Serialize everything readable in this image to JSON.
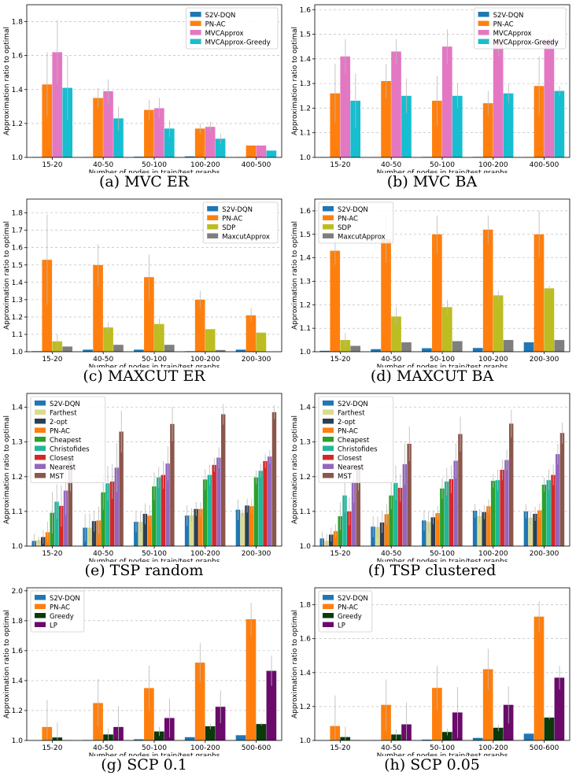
{
  "colors": {
    "S2V-DQN": "#1f77b4",
    "PN-AC": "#ff7f0e",
    "MVCApprox": "#e377c2",
    "MVCApprox-Greedy": "#17becf",
    "SDP": "#bcbd22",
    "MaxcutApprox": "#7f7f7f",
    "Farthest": "#dbdb8d",
    "2-opt": "#2f3f52",
    "Cheapest": "#2ca02c",
    "Christofides": "#1fb89a",
    "Closest": "#d62728",
    "Nearest": "#9467bd",
    "MST": "#8c564b",
    "Greedy": "#0a3a0a",
    "LP": "#6a0a6a"
  },
  "chart_data": [
    {
      "id": "a",
      "type": "bar",
      "caption": "(a) MVC ER",
      "xlabel": "Number of nodes in train/test graphs",
      "ylabel": "Approximation ratio to optimal",
      "ylim": [
        1.0,
        1.9
      ],
      "yticks": [
        1.0,
        1.2,
        1.4,
        1.6,
        1.8
      ],
      "tick_decimals": 1,
      "legend": "top-right",
      "grid": "y-dashed",
      "categories": [
        "15-20",
        "40-50",
        "50-100",
        "100-200",
        "400-500"
      ],
      "series": [
        {
          "name": "S2V-DQN",
          "values": [
            1.002,
            1.002,
            1.004,
            1.006,
            1.002
          ],
          "err": [
            0,
            0,
            0,
            0,
            0
          ]
        },
        {
          "name": "PN-AC",
          "values": [
            1.43,
            1.35,
            1.28,
            1.17,
            1.07
          ],
          "err": [
            0.19,
            0.06,
            0.06,
            0.03,
            0.0
          ]
        },
        {
          "name": "MVCApprox",
          "values": [
            1.62,
            1.39,
            1.29,
            1.18,
            1.07
          ],
          "err": [
            0.19,
            0.07,
            0.06,
            0.03,
            0.0
          ]
        },
        {
          "name": "MVCApprox-Greedy",
          "values": [
            1.41,
            1.23,
            1.17,
            1.11,
            1.04
          ],
          "err": [
            0.19,
            0.07,
            0.05,
            0.03,
            0.0
          ]
        }
      ]
    },
    {
      "id": "b",
      "type": "bar",
      "caption": "(b) MVC BA",
      "xlabel": "Number of nodes in train/test graphs",
      "ylabel": "Approximation ratio to optimal",
      "ylim": [
        1.0,
        1.62
      ],
      "yticks": [
        1.0,
        1.1,
        1.2,
        1.3,
        1.4,
        1.5,
        1.6
      ],
      "tick_decimals": 1,
      "legend": "top-right",
      "grid": "y-dashed",
      "categories": [
        "15-20",
        "40-50",
        "50-100",
        "100-200",
        "400-500"
      ],
      "series": [
        {
          "name": "S2V-DQN",
          "values": [
            1.001,
            1.001,
            1.002,
            1.002,
            1.001
          ],
          "err": [
            0,
            0,
            0,
            0,
            0
          ]
        },
        {
          "name": "PN-AC",
          "values": [
            1.26,
            1.31,
            1.23,
            1.22,
            1.29
          ],
          "err": [
            0.12,
            0.07,
            0.1,
            0.05,
            0.12
          ]
        },
        {
          "name": "MVCApprox",
          "values": [
            1.41,
            1.43,
            1.45,
            1.46,
            1.48
          ],
          "err": [
            0.07,
            0.05,
            0.07,
            0.05,
            0.03
          ]
        },
        {
          "name": "MVCApprox-Greedy",
          "values": [
            1.23,
            1.25,
            1.25,
            1.26,
            1.27
          ],
          "err": [
            0.11,
            0.07,
            0.05,
            0.04,
            0.02
          ]
        }
      ]
    },
    {
      "id": "c",
      "type": "bar",
      "caption": "(c) MAXCUT ER",
      "xlabel": "Number of nodes in train/test graphs",
      "ylabel": "Approximation ratio to optimal",
      "ylim": [
        1.0,
        1.88
      ],
      "yticks": [
        1.0,
        1.1,
        1.2,
        1.3,
        1.4,
        1.5,
        1.6,
        1.7,
        1.8
      ],
      "tick_decimals": 1,
      "legend": "top-right",
      "grid": "y-dashed",
      "categories": [
        "15-20",
        "40-50",
        "50-100",
        "100-200",
        "200-300"
      ],
      "series": [
        {
          "name": "S2V-DQN",
          "values": [
            1.003,
            1.012,
            1.012,
            1.003,
            1.012
          ],
          "err": [
            0,
            0,
            0,
            0,
            0
          ]
        },
        {
          "name": "PN-AC",
          "values": [
            1.53,
            1.5,
            1.43,
            1.3,
            1.21
          ],
          "err": [
            0.26,
            0.12,
            0.13,
            0.05,
            0.04
          ]
        },
        {
          "name": "SDP",
          "values": [
            1.06,
            1.14,
            1.16,
            1.13,
            1.11
          ],
          "err": [
            0.04,
            0.03,
            0.03,
            0.0,
            0.0
          ]
        },
        {
          "name": "MaxcutApprox",
          "values": [
            1.03,
            1.04,
            1.04,
            1.01,
            1.0
          ],
          "err": [
            0,
            0,
            0,
            0,
            0
          ]
        }
      ]
    },
    {
      "id": "d",
      "type": "bar",
      "caption": "(d) MAXCUT BA",
      "xlabel": "Number of nodes in train/test graphs",
      "ylabel": "Approximation ratio to optimal",
      "ylim": [
        1.0,
        1.65
      ],
      "yticks": [
        1.0,
        1.1,
        1.2,
        1.3,
        1.4,
        1.5,
        1.6
      ],
      "tick_decimals": 1,
      "legend": "top-left",
      "grid": "y-dashed",
      "categories": [
        "15-20",
        "40-50",
        "50-100",
        "100-200",
        "200-300"
      ],
      "series": [
        {
          "name": "S2V-DQN",
          "values": [
            1.004,
            1.011,
            1.015,
            1.016,
            1.04
          ],
          "err": [
            0,
            0,
            0,
            0,
            0
          ]
        },
        {
          "name": "PN-AC",
          "values": [
            1.43,
            1.48,
            1.5,
            1.52,
            1.5
          ],
          "err": [
            0.06,
            0.1,
            0.08,
            0.06,
            0.1
          ]
        },
        {
          "name": "SDP",
          "values": [
            1.05,
            1.15,
            1.19,
            1.24,
            1.27
          ],
          "err": [
            0.03,
            0.04,
            0.03,
            0.02,
            0.01
          ]
        },
        {
          "name": "MaxcutApprox",
          "values": [
            1.025,
            1.04,
            1.045,
            1.05,
            1.05
          ],
          "err": [
            0,
            0,
            0,
            0,
            0
          ]
        }
      ]
    },
    {
      "id": "e",
      "type": "bar",
      "caption": "(e) TSP random",
      "xlabel": "Number of nodes in train/test graphs",
      "ylabel": "Approximation ratio to optimal",
      "ylim": [
        1.0,
        1.44
      ],
      "yticks": [
        1.0,
        1.1,
        1.2,
        1.3,
        1.4
      ],
      "tick_decimals": 1,
      "legend": "top-left",
      "grid": "y-dashed",
      "categories": [
        "15-20",
        "40-50",
        "50-100",
        "100-200",
        "200-300"
      ],
      "series": [
        {
          "name": "S2V-DQN",
          "values": [
            1.015,
            1.053,
            1.07,
            1.088,
            1.105
          ],
          "err": [
            0.02,
            0.04,
            0.03,
            0.03,
            0.03
          ]
        },
        {
          "name": "Farthest",
          "values": [
            1.017,
            1.053,
            1.07,
            1.089,
            1.096
          ],
          "err": [
            0.01,
            0.04,
            0.03,
            0.02,
            0.01
          ]
        },
        {
          "name": "2-opt",
          "values": [
            1.026,
            1.072,
            1.093,
            1.107,
            1.117
          ],
          "err": [
            0.02,
            0.03,
            0.03,
            0.02,
            0.02
          ]
        },
        {
          "name": "PN-AC",
          "values": [
            1.04,
            1.074,
            1.088,
            1.107,
            1.115
          ],
          "err": [
            0.03,
            0.04,
            0.03,
            0.02,
            0.02
          ]
        },
        {
          "name": "Cheapest",
          "values": [
            1.096,
            1.155,
            1.172,
            1.192,
            1.198
          ],
          "err": [
            0.06,
            0.05,
            0.04,
            0.03,
            0.02
          ]
        },
        {
          "name": "Christofides",
          "values": [
            1.128,
            1.181,
            1.198,
            1.205,
            1.217
          ],
          "err": [
            0.05,
            0.05,
            0.03,
            0.03,
            0.02
          ]
        },
        {
          "name": "Closest",
          "values": [
            1.116,
            1.186,
            1.205,
            1.234,
            1.245
          ],
          "err": [
            0.06,
            0.05,
            0.04,
            0.02,
            0.02
          ]
        },
        {
          "name": "Nearest",
          "values": [
            1.16,
            1.226,
            1.238,
            1.255,
            1.258
          ],
          "err": [
            0.07,
            0.07,
            0.05,
            0.03,
            0.02
          ]
        },
        {
          "name": "MST",
          "values": [
            1.248,
            1.33,
            1.352,
            1.38,
            1.386
          ],
          "err": [
            0.09,
            0.06,
            0.05,
            0.03,
            0.02
          ]
        }
      ]
    },
    {
      "id": "f",
      "type": "bar",
      "caption": "(f) TSP clustered",
      "xlabel": "Number of nodes in train/test graphs",
      "ylabel": "Approximation ratio to optimal",
      "ylim": [
        1.0,
        1.44
      ],
      "yticks": [
        1.0,
        1.1,
        1.2,
        1.3,
        1.4
      ],
      "tick_decimals": 1,
      "legend": "top-left",
      "grid": "y-dashed",
      "categories": [
        "15-20",
        "40-50",
        "50-100",
        "100-200",
        "200-300"
      ],
      "series": [
        {
          "name": "S2V-DQN",
          "values": [
            1.022,
            1.056,
            1.074,
            1.102,
            1.1
          ],
          "err": [
            0.02,
            0.03,
            0.03,
            0.02,
            0.02
          ]
        },
        {
          "name": "Farthest",
          "values": [
            1.015,
            1.055,
            1.07,
            1.087,
            1.082
          ],
          "err": [
            0.02,
            0.03,
            0.03,
            0.02,
            0.02
          ]
        },
        {
          "name": "2-opt",
          "values": [
            1.033,
            1.068,
            1.083,
            1.098,
            1.093
          ],
          "err": [
            0.02,
            0.03,
            0.02,
            0.02,
            0.02
          ]
        },
        {
          "name": "PN-AC",
          "values": [
            1.043,
            1.092,
            1.095,
            1.115,
            1.103
          ],
          "err": [
            0.02,
            0.03,
            0.02,
            0.02,
            0.02
          ]
        },
        {
          "name": "Cheapest",
          "values": [
            1.086,
            1.146,
            1.166,
            1.188,
            1.177
          ],
          "err": [
            0.04,
            0.04,
            0.03,
            0.02,
            0.02
          ]
        },
        {
          "name": "Christofides",
          "values": [
            1.146,
            1.182,
            1.186,
            1.19,
            1.19
          ],
          "err": [
            0.05,
            0.05,
            0.04,
            0.03,
            0.03
          ]
        },
        {
          "name": "Closest",
          "values": [
            1.1,
            1.168,
            1.193,
            1.22,
            1.205
          ],
          "err": [
            0.04,
            0.04,
            0.04,
            0.03,
            0.03
          ]
        },
        {
          "name": "Nearest",
          "values": [
            1.185,
            1.236,
            1.246,
            1.248,
            1.265
          ],
          "err": [
            0.06,
            0.06,
            0.05,
            0.03,
            0.03
          ]
        },
        {
          "name": "MST",
          "values": [
            1.23,
            1.295,
            1.323,
            1.353,
            1.326
          ],
          "err": [
            0.07,
            0.05,
            0.05,
            0.04,
            0.03
          ]
        }
      ]
    },
    {
      "id": "g",
      "type": "bar",
      "caption": "(g) SCP 0.1",
      "xlabel": "Number of nodes in train/test graphs",
      "ylabel": "Approximation ratio to optimal",
      "ylim": [
        1.0,
        2.02
      ],
      "yticks": [
        1.0,
        1.2,
        1.4,
        1.6,
        1.8,
        2.0
      ],
      "tick_decimals": 1,
      "legend": "top-left",
      "grid": "y-dashed",
      "categories": [
        "15-20",
        "40-50",
        "50-100",
        "100-200",
        "500-600"
      ],
      "series": [
        {
          "name": "S2V-DQN",
          "values": [
            1.001,
            1.003,
            1.008,
            1.022,
            1.035
          ],
          "err": [
            0,
            0,
            0,
            0,
            0
          ]
        },
        {
          "name": "PN-AC",
          "values": [
            1.09,
            1.25,
            1.35,
            1.52,
            1.81
          ],
          "err": [
            0.18,
            0.16,
            0.15,
            0.13,
            0.11
          ]
        },
        {
          "name": "Greedy",
          "values": [
            1.02,
            1.04,
            1.06,
            1.095,
            1.11
          ],
          "err": [
            0.1,
            0.04,
            0.03,
            0.02,
            0.01
          ]
        },
        {
          "name": "LP",
          "values": [
            1.002,
            1.09,
            1.15,
            1.225,
            1.465
          ],
          "err": [
            0,
            0.14,
            0.13,
            0.11,
            0.1
          ]
        }
      ]
    },
    {
      "id": "h",
      "type": "bar",
      "caption": "(h) SCP 0.05",
      "xlabel": "Number of nodes in train/test graphs",
      "ylabel": "Approximation ratio to optimal",
      "ylim": [
        1.0,
        1.9
      ],
      "yticks": [
        1.0,
        1.2,
        1.4,
        1.6,
        1.8
      ],
      "tick_decimals": 1,
      "legend": "top-left",
      "grid": "y-dashed",
      "categories": [
        "15-20",
        "40-50",
        "50-100",
        "100-200",
        "500-600"
      ],
      "series": [
        {
          "name": "S2V-DQN",
          "values": [
            1.001,
            1.002,
            1.005,
            1.015,
            1.04
          ],
          "err": [
            0,
            0,
            0,
            0,
            0
          ]
        },
        {
          "name": "PN-AC",
          "values": [
            1.085,
            1.21,
            1.31,
            1.42,
            1.73
          ],
          "err": [
            0.18,
            0.15,
            0.13,
            0.12,
            0.09
          ]
        },
        {
          "name": "Greedy",
          "values": [
            1.02,
            1.035,
            1.05,
            1.075,
            1.135
          ],
          "err": [
            0.06,
            0.03,
            0.02,
            0.02,
            0.01
          ]
        },
        {
          "name": "LP",
          "values": [
            1.002,
            1.095,
            1.165,
            1.21,
            1.37
          ],
          "err": [
            0,
            0.13,
            0.15,
            0.11,
            0.07
          ]
        }
      ]
    }
  ]
}
